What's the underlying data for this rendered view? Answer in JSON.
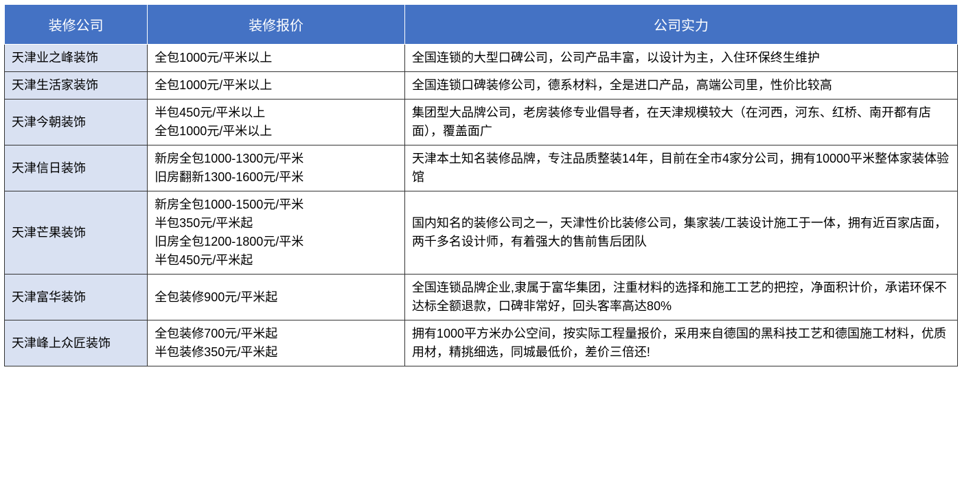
{
  "table": {
    "headers": {
      "company": "装修公司",
      "quote": "装修报价",
      "strength": "公司实力"
    },
    "rows": [
      {
        "company": "天津业之峰装饰",
        "quote": "全包1000元/平米以上",
        "strength": "全国连锁的大型口碑公司，公司产品丰富，以设计为主，入住环保终生维护"
      },
      {
        "company": "天津生活家装饰",
        "quote": "全包1000元/平米以上",
        "strength": "全国连锁口碑装修公司，德系材料，全是进口产品，高端公司里，性价比较高"
      },
      {
        "company": "天津今朝装饰",
        "quote": "半包450元/平米以上\n全包1000元/平米以上",
        "strength": "集团型大品牌公司，老房装修专业倡导者，在天津规模较大（在河西，河东、红桥、南开都有店面），覆盖面广"
      },
      {
        "company": "天津信日装饰",
        "quote": "新房全包1000-1300元/平米\n旧房翻新1300-1600元/平米",
        "strength": "天津本土知名装修品牌，专注品质整装14年，目前在全市4家分公司，拥有10000平米整体家装体验馆"
      },
      {
        "company": "天津芒果装饰",
        "quote": "新房全包1000-1500元/平米\n半包350元/平米起\n旧房全包1200-1800元/平米\n半包450元/平米起",
        "strength": "国内知名的装修公司之一，天津性价比装修公司，集家装/工装设计施工于一体，拥有近百家店面，两千多名设计师，有着强大的售前售后团队"
      },
      {
        "company": "天津富华装饰",
        "quote": "全包装修900元/平米起",
        "strength": "全国连锁品牌企业,隶属于富华集团，注重材料的选择和施工工艺的把控，净面积计价，承诺环保不达标全额退款，口碑非常好，回头客率高达80%"
      },
      {
        "company": "天津峰上众匠装饰",
        "quote": "全包装修700元/平米起\n半包装修350元/平米起",
        "strength": "拥有1000平方米办公空间，按实际工程量报价，采用来自德国的黑科技工艺和德国施工材料，优质用材，精挑细选，同城最低价，差价三倍还!"
      }
    ],
    "colors": {
      "header_bg": "#4472c4",
      "header_text": "#ffffff",
      "company_cell_bg": "#d9e1f2",
      "cell_bg": "#ffffff",
      "border": "#333333",
      "text": "#000000"
    },
    "fontsize": {
      "header": 20,
      "cell": 18
    }
  }
}
